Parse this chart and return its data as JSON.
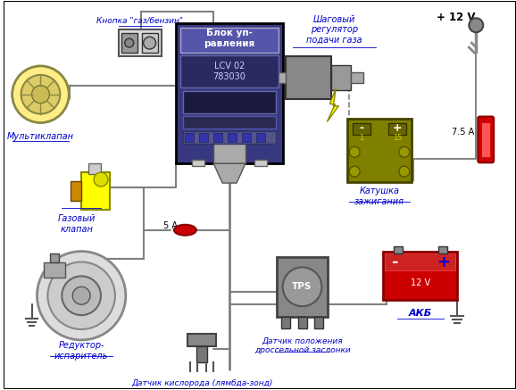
{
  "title": "",
  "background_color": "#ffffff",
  "fig_width": 5.78,
  "fig_height": 4.37,
  "dpi": 100,
  "labels": {
    "knopka": "Кнопка \"газ/бензин\"",
    "shagoviy": "Шаговый\nрегулятор\nподачи газа",
    "blok": "Блок уп-\nравления",
    "multiklapan": "Мультиклапан",
    "gazoviy": "Газовый\nклапан",
    "katushka": "Катушка\nзажигания",
    "plus12v": "+ 12 V",
    "fuse75A": "7.5 А",
    "fuse5A": "5 А",
    "reduktor": "Редуктор-\nиспаритель",
    "akb": "АКБ",
    "datchik_poloz": "Датчик положения\nдроссельной заслонки",
    "datchik_kislo": "Датчик кислорода (лямбда-зонд)",
    "lcv": "LCV 02\n783030",
    "tps": "TPS",
    "v12": "12 V"
  },
  "colors": {
    "text_blue": "#0000cc",
    "wire": "#808080",
    "blok_bg": "#383880",
    "blok_inner": "#5555aa",
    "blok_lcv": "#2a2a60",
    "blok_text": "#ffffff",
    "fuse_red": "#cc0000",
    "fuse_dark": "#880000",
    "katushka_bg": "#808000",
    "katushka_dark": "#444400",
    "katushka_term": "#666600",
    "akb_red": "#cc0000",
    "akb_dark": "#880000",
    "border": "#000000",
    "gray": "#888888",
    "midgray": "#aaaaaa",
    "lightgray": "#dddddd",
    "yellow": "#ffff00",
    "olive": "#999900",
    "darkgray": "#555555",
    "knopka_bg": "#dddddd",
    "knopka_dark": "#555555"
  }
}
